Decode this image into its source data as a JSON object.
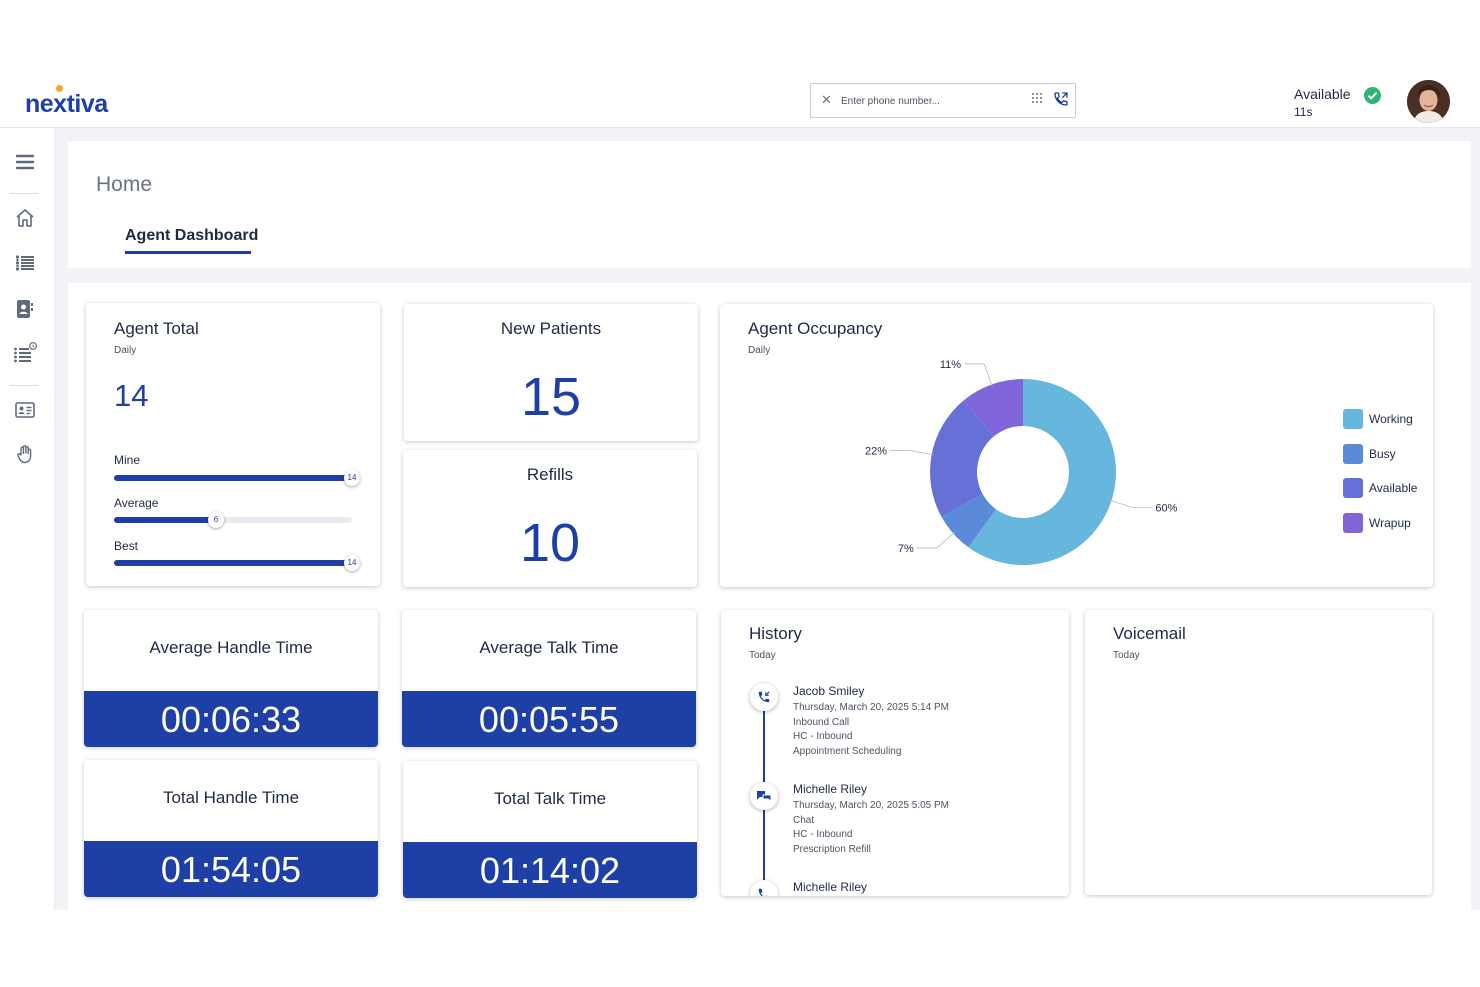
{
  "header": {
    "logo_text": "nextiva",
    "phone_placeholder": "Enter phone number...",
    "status_label": "Available",
    "status_timer": "11s",
    "icons": [
      "clear-icon",
      "dialpad-icon",
      "phone-call-icon",
      "check-circle-icon",
      "user-avatar"
    ]
  },
  "sidebar": {
    "icons": [
      "hamburger-menu-icon",
      "home-icon",
      "list-icon",
      "contacts-book-icon",
      "list-clock-icon",
      "id-card-icon",
      "raised-hand-icon"
    ]
  },
  "page": {
    "title": "Home",
    "active_tab": "Agent Dashboard"
  },
  "agent_total": {
    "title": "Agent Total",
    "period": "Daily",
    "value": "14",
    "bars": [
      {
        "label": "Mine",
        "value": 14,
        "max": 14,
        "knob": "14"
      },
      {
        "label": "Average",
        "value": 6,
        "max": 14,
        "knob": "6"
      },
      {
        "label": "Best",
        "value": 14,
        "max": 14,
        "knob": "14"
      }
    ]
  },
  "new_patients": {
    "title": "New Patients",
    "value": "15"
  },
  "refills": {
    "title": "Refills",
    "value": "10"
  },
  "agent_occupancy": {
    "title": "Agent Occupancy",
    "period": "Daily"
  },
  "chart_data": {
    "type": "pie",
    "title": "Agent Occupancy",
    "categories": [
      "Working",
      "Busy",
      "Available",
      "Wrapup"
    ],
    "values": [
      60,
      7,
      22,
      11
    ],
    "labels": [
      "60%",
      "7%",
      "22%",
      "11%"
    ],
    "colors": [
      "#67b6dd",
      "#5b8ad9",
      "#6670d6",
      "#8065da"
    ],
    "donut": true,
    "legend": "right"
  },
  "timers": [
    {
      "title": "Average Handle Time",
      "value": "00:06:33"
    },
    {
      "title": "Average Talk Time",
      "value": "00:05:55"
    },
    {
      "title": "Total Handle Time",
      "value": "01:54:05"
    },
    {
      "title": "Total Talk Time",
      "value": "01:14:02"
    }
  ],
  "history": {
    "title": "History",
    "period": "Today",
    "items": [
      {
        "name": "Jacob Smiley",
        "datetime": "Thursday, March 20, 2025 5:14 PM",
        "type": "Inbound Call",
        "queue": "HC - Inbound",
        "topic": "Appointment Scheduling",
        "icon": "inbound-call-icon"
      },
      {
        "name": "Michelle Riley",
        "datetime": "Thursday, March 20, 2025 5:05 PM",
        "type": "Chat",
        "queue": "HC - Inbound",
        "topic": "Prescription Refill",
        "icon": "chat-icon"
      },
      {
        "name": "Michelle Riley",
        "icon": "inbound-call-icon"
      }
    ]
  },
  "voicemail": {
    "title": "Voicemail",
    "period": "Today"
  }
}
